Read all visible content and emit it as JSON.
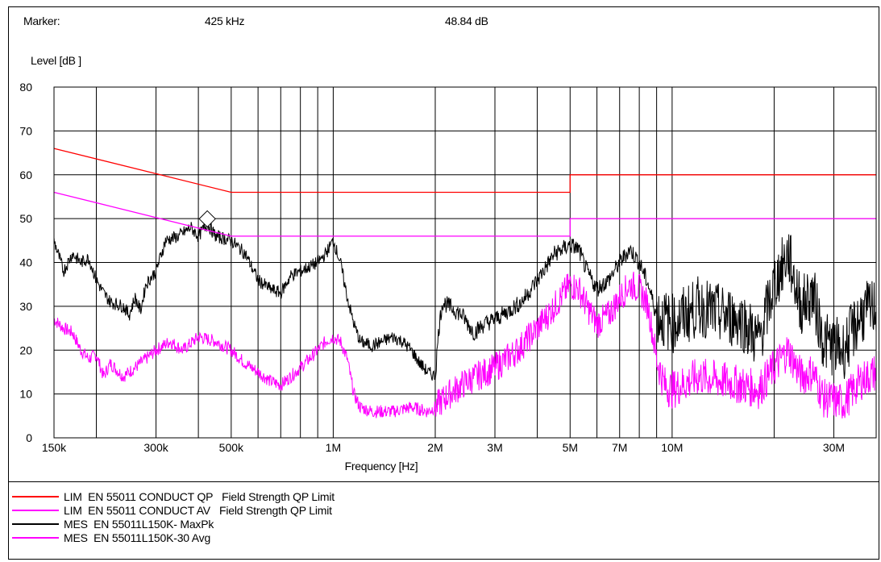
{
  "marker": {
    "label": "Marker:",
    "frequency": "425 kHz",
    "level": "48.84 dB",
    "symbol": "diamond",
    "x_hz": 425000,
    "y_db": 48.84
  },
  "colors": {
    "qp_limit": "#ff0000",
    "av_limit": "#ff00ff",
    "maxpk": "#000000",
    "avg": "#ff00ff"
  },
  "chart_data": {
    "type": "line",
    "title": "",
    "xlabel": "Frequency [Hz]",
    "ylabel": "Level [dB   ]",
    "x_scale": "log",
    "xlim": [
      150000,
      40000000
    ],
    "ylim": [
      0,
      80
    ],
    "grid": true,
    "y_ticks": [
      0,
      10,
      20,
      30,
      40,
      50,
      60,
      70,
      80
    ],
    "x_ticks": [
      {
        "value": 150000,
        "label": "150k"
      },
      {
        "value": 300000,
        "label": "300k"
      },
      {
        "value": 500000,
        "label": "500k"
      },
      {
        "value": 1000000,
        "label": "1M"
      },
      {
        "value": 2000000,
        "label": "2M"
      },
      {
        "value": 3000000,
        "label": "3M"
      },
      {
        "value": 5000000,
        "label": "5M"
      },
      {
        "value": 7000000,
        "label": "7M"
      },
      {
        "value": 10000000,
        "label": "10M"
      },
      {
        "value": 30000000,
        "label": "30M"
      }
    ],
    "legend_position": "bottom",
    "series": [
      {
        "name": "LIM  EN 55011 CONDUCT QP   Field Strength QP Limit",
        "color": "#ff0000",
        "points": [
          [
            150000,
            66
          ],
          [
            500000,
            56
          ],
          [
            5000000,
            56
          ],
          [
            5000000,
            60
          ],
          [
            40000000,
            60
          ]
        ]
      },
      {
        "name": "LIM  EN 55011 CONDUCT AV   Field Strength QP Limit",
        "color": "#ff00ff",
        "points": [
          [
            150000,
            56
          ],
          [
            500000,
            46
          ],
          [
            5000000,
            46
          ],
          [
            5000000,
            50
          ],
          [
            40000000,
            50
          ]
        ]
      },
      {
        "name": "MES  EN 55011L150K- MaxPk",
        "color": "#000000",
        "points": [
          [
            150000,
            45
          ],
          [
            160000,
            38
          ],
          [
            170000,
            42
          ],
          [
            180000,
            40
          ],
          [
            190000,
            41
          ],
          [
            200000,
            36
          ],
          [
            210000,
            33
          ],
          [
            220000,
            31
          ],
          [
            240000,
            30
          ],
          [
            250000,
            28
          ],
          [
            260000,
            32
          ],
          [
            270000,
            29
          ],
          [
            280000,
            35
          ],
          [
            300000,
            38
          ],
          [
            320000,
            45
          ],
          [
            350000,
            46
          ],
          [
            380000,
            48
          ],
          [
            400000,
            46
          ],
          [
            425000,
            48.8
          ],
          [
            450000,
            46
          ],
          [
            500000,
            45
          ],
          [
            550000,
            42
          ],
          [
            600000,
            36
          ],
          [
            650000,
            34
          ],
          [
            700000,
            33
          ],
          [
            750000,
            37
          ],
          [
            800000,
            38
          ],
          [
            850000,
            39
          ],
          [
            900000,
            40
          ],
          [
            950000,
            42
          ],
          [
            1000000,
            45
          ],
          [
            1050000,
            40
          ],
          [
            1100000,
            32
          ],
          [
            1150000,
            26
          ],
          [
            1200000,
            22
          ],
          [
            1300000,
            21
          ],
          [
            1400000,
            22
          ],
          [
            1500000,
            23
          ],
          [
            1600000,
            22
          ],
          [
            1700000,
            20
          ],
          [
            1800000,
            17
          ],
          [
            1900000,
            15
          ],
          [
            2000000,
            14
          ],
          [
            2050000,
            25
          ],
          [
            2100000,
            31
          ],
          [
            2200000,
            30
          ],
          [
            2400000,
            28
          ],
          [
            2600000,
            24
          ],
          [
            2800000,
            26
          ],
          [
            3000000,
            27
          ],
          [
            3300000,
            29
          ],
          [
            3600000,
            31
          ],
          [
            4000000,
            36
          ],
          [
            4500000,
            42
          ],
          [
            5000000,
            44
          ],
          [
            5300000,
            43
          ],
          [
            5600000,
            38
          ],
          [
            6000000,
            34
          ],
          [
            6500000,
            36
          ],
          [
            7000000,
            40
          ],
          [
            7500000,
            43
          ],
          [
            8000000,
            40
          ],
          [
            8500000,
            35
          ],
          [
            9000000,
            28
          ],
          [
            10000000,
            26
          ],
          [
            12000000,
            30
          ],
          [
            14000000,
            28
          ],
          [
            16000000,
            27
          ],
          [
            18000000,
            22
          ],
          [
            20000000,
            35
          ],
          [
            22000000,
            42
          ],
          [
            24000000,
            30
          ],
          [
            26000000,
            33
          ],
          [
            28000000,
            22
          ],
          [
            32000000,
            20
          ],
          [
            36000000,
            28
          ],
          [
            40000000,
            30
          ]
        ]
      },
      {
        "name": "MES  EN 55011L150K-30 Avg",
        "color": "#ff00ff",
        "points": [
          [
            150000,
            27
          ],
          [
            160000,
            25
          ],
          [
            170000,
            24
          ],
          [
            180000,
            20
          ],
          [
            190000,
            18
          ],
          [
            200000,
            19
          ],
          [
            210000,
            14
          ],
          [
            220000,
            17
          ],
          [
            240000,
            14
          ],
          [
            260000,
            16
          ],
          [
            280000,
            18
          ],
          [
            300000,
            20
          ],
          [
            330000,
            22
          ],
          [
            360000,
            20
          ],
          [
            400000,
            23
          ],
          [
            450000,
            22
          ],
          [
            500000,
            20
          ],
          [
            550000,
            17
          ],
          [
            600000,
            15
          ],
          [
            650000,
            13
          ],
          [
            700000,
            12
          ],
          [
            750000,
            14
          ],
          [
            800000,
            16
          ],
          [
            850000,
            18
          ],
          [
            900000,
            20
          ],
          [
            950000,
            22
          ],
          [
            1000000,
            23
          ],
          [
            1050000,
            22
          ],
          [
            1100000,
            18
          ],
          [
            1150000,
            10
          ],
          [
            1200000,
            7
          ],
          [
            1300000,
            6
          ],
          [
            1500000,
            6
          ],
          [
            1700000,
            7
          ],
          [
            1900000,
            6
          ],
          [
            2000000,
            7
          ],
          [
            2200000,
            10
          ],
          [
            2500000,
            13
          ],
          [
            3000000,
            16
          ],
          [
            3500000,
            20
          ],
          [
            4000000,
            25
          ],
          [
            4500000,
            30
          ],
          [
            5000000,
            35
          ],
          [
            5300000,
            34
          ],
          [
            5600000,
            30
          ],
          [
            6000000,
            26
          ],
          [
            6500000,
            28
          ],
          [
            7000000,
            32
          ],
          [
            7500000,
            35
          ],
          [
            8000000,
            34
          ],
          [
            8500000,
            30
          ],
          [
            9000000,
            18
          ],
          [
            9500000,
            12
          ],
          [
            10000000,
            11
          ],
          [
            12000000,
            14
          ],
          [
            14000000,
            13
          ],
          [
            16000000,
            12
          ],
          [
            18000000,
            11
          ],
          [
            20000000,
            16
          ],
          [
            22000000,
            20
          ],
          [
            24000000,
            14
          ],
          [
            26000000,
            15
          ],
          [
            28000000,
            9
          ],
          [
            32000000,
            8
          ],
          [
            36000000,
            13
          ],
          [
            40000000,
            15
          ]
        ]
      }
    ]
  }
}
